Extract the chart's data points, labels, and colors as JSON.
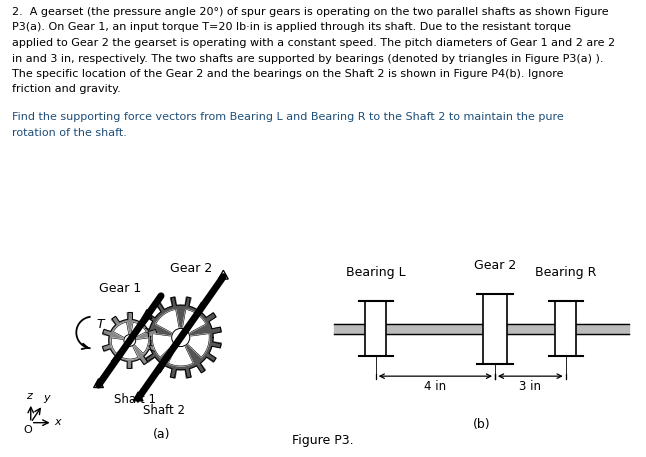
{
  "title": "Figure P3.",
  "title_color": "#4472C4",
  "paragraph1_lines": [
    "2.  A gearset (the pressure angle 20°) of spur gears is operating on the two parallel shafts as shown Figure",
    "P3(a). On Gear 1, an input torque T=20 lb·in is applied through its shaft. Due to the resistant torque",
    "applied to Gear 2 the gearset is operating with a constant speed. The pitch diameters of Gear 1 and 2 are 2",
    "in and 3 in, respectively. The two shafts are supported by bearings (denoted by triangles in Figure P3(a) ).",
    "The specific location of the Gear 2 and the bearings on the Shaft 2 is shown in Figure P4(b). Ignore",
    "friction and gravity."
  ],
  "paragraph2_lines": [
    "Find the supporting force vectors from Bearing L and Bearing R to the Shaft 2 to maintain the pure",
    "rotation of the shaft."
  ],
  "text_color": "#000000",
  "para2_color": "#1F4E79",
  "gear1_label": "Gear 1",
  "gear2_label_a": "Gear 2",
  "shaft1_label": "Shaft 1",
  "shaft2_label": "Shaft 2",
  "T_label": "T",
  "gear2_label_b": "Gear 2",
  "bearingL_label": "Bearing L",
  "bearingR_label": "Bearing R",
  "dim1": "4 in",
  "dim2": "3 in",
  "subfig_a": "(a)",
  "subfig_b": "(b)",
  "bg_color": "#ffffff",
  "gear1_color": "#888888",
  "gear2_color": "#555555",
  "shaft_color": "#000000",
  "bearing_color": "#ffffff"
}
